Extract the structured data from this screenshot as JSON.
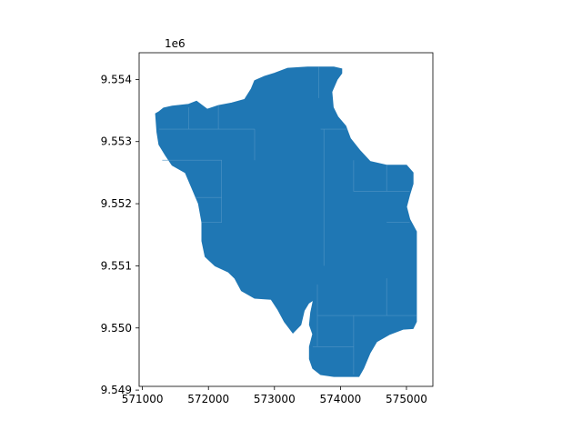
{
  "chart_data": {
    "type": "map",
    "offset_label": "1e6",
    "fill_color": "#1f77b4",
    "frame_color": "#000000",
    "xlim": [
      570950,
      575400
    ],
    "ylim": [
      9549060,
      9554430
    ],
    "x_ticks": [
      {
        "value": 571000,
        "label": "571000"
      },
      {
        "value": 572000,
        "label": "572000"
      },
      {
        "value": 573000,
        "label": "573000"
      },
      {
        "value": 574000,
        "label": "574000"
      },
      {
        "value": 575000,
        "label": "575000"
      }
    ],
    "y_ticks": [
      {
        "value": 9549000,
        "label": "9.549"
      },
      {
        "value": 9550000,
        "label": "9.550"
      },
      {
        "value": 9551000,
        "label": "9.551"
      },
      {
        "value": 9552000,
        "label": "9.552"
      },
      {
        "value": 9553000,
        "label": "9.553"
      },
      {
        "value": 9554000,
        "label": "9.554"
      }
    ],
    "region_outline": [
      [
        571200,
        9553450
      ],
      [
        571250,
        9553480
      ],
      [
        571320,
        9553540
      ],
      [
        571450,
        9553570
      ],
      [
        571700,
        9553600
      ],
      [
        571820,
        9553650
      ],
      [
        571980,
        9553520
      ],
      [
        572150,
        9553580
      ],
      [
        572350,
        9553620
      ],
      [
        572550,
        9553680
      ],
      [
        572650,
        9553850
      ],
      [
        572700,
        9553980
      ],
      [
        572850,
        9554050
      ],
      [
        573000,
        9554100
      ],
      [
        573200,
        9554180
      ],
      [
        573500,
        9554200
      ],
      [
        573700,
        9554200
      ],
      [
        573900,
        9554200
      ],
      [
        574020,
        9554170
      ],
      [
        574020,
        9554100
      ],
      [
        573950,
        9554000
      ],
      [
        573870,
        9553800
      ],
      [
        573890,
        9553550
      ],
      [
        573960,
        9553400
      ],
      [
        574080,
        9553250
      ],
      [
        574150,
        9553050
      ],
      [
        574300,
        9552850
      ],
      [
        574450,
        9552680
      ],
      [
        574700,
        9552620
      ],
      [
        575000,
        9552620
      ],
      [
        575100,
        9552500
      ],
      [
        575100,
        9552320
      ],
      [
        575050,
        9552150
      ],
      [
        575000,
        9551950
      ],
      [
        575050,
        9551750
      ],
      [
        575150,
        9551550
      ],
      [
        575150,
        9551200
      ],
      [
        575150,
        9550800
      ],
      [
        575150,
        9550400
      ],
      [
        575150,
        9550100
      ],
      [
        575100,
        9549990
      ],
      [
        574950,
        9549980
      ],
      [
        574750,
        9549900
      ],
      [
        574550,
        9549780
      ],
      [
        574450,
        9549600
      ],
      [
        574350,
        9549350
      ],
      [
        574280,
        9549220
      ],
      [
        574150,
        9549220
      ],
      [
        573900,
        9549220
      ],
      [
        573700,
        9549250
      ],
      [
        573580,
        9549350
      ],
      [
        573530,
        9549500
      ],
      [
        573530,
        9549700
      ],
      [
        573580,
        9549900
      ],
      [
        573530,
        9550050
      ],
      [
        573550,
        9550250
      ],
      [
        573590,
        9550450
      ],
      [
        573520,
        9550400
      ],
      [
        573450,
        9550280
      ],
      [
        573400,
        9550050
      ],
      [
        573280,
        9549920
      ],
      [
        573150,
        9550100
      ],
      [
        573050,
        9550300
      ],
      [
        572950,
        9550460
      ],
      [
        572700,
        9550480
      ],
      [
        572500,
        9550600
      ],
      [
        572400,
        9550800
      ],
      [
        572300,
        9550900
      ],
      [
        572100,
        9551000
      ],
      [
        571950,
        9551150
      ],
      [
        571900,
        9551400
      ],
      [
        571900,
        9551700
      ],
      [
        571850,
        9552000
      ],
      [
        571750,
        9552250
      ],
      [
        571650,
        9552500
      ],
      [
        571450,
        9552620
      ],
      [
        571350,
        9552780
      ],
      [
        571250,
        9552950
      ],
      [
        571220,
        9553150
      ],
      [
        571200,
        9553450
      ]
    ],
    "interior_boundaries": [
      [
        [
          571250,
          9553200
        ],
        [
          571900,
          9553200
        ],
        [
          572700,
          9553200
        ]
      ],
      [
        [
          571700,
          9553550
        ],
        [
          571700,
          9553200
        ]
      ],
      [
        [
          572150,
          9553580
        ],
        [
          572150,
          9553200
        ]
      ],
      [
        [
          571300,
          9552700
        ],
        [
          571800,
          9552700
        ],
        [
          572200,
          9552700
        ],
        [
          572200,
          9551700
        ],
        [
          571900,
          9551700
        ]
      ],
      [
        [
          571800,
          9552100
        ],
        [
          572200,
          9552100
        ]
      ],
      [
        [
          572700,
          9553200
        ],
        [
          572700,
          9552700
        ]
      ],
      [
        [
          573670,
          9554200
        ],
        [
          573670,
          9553700
        ]
      ],
      [
        [
          573700,
          9553200
        ],
        [
          574100,
          9553200
        ]
      ],
      [
        [
          573750,
          9553200
        ],
        [
          573750,
          9552000
        ],
        [
          573750,
          9551000
        ]
      ],
      [
        [
          574200,
          9552700
        ],
        [
          574200,
          9552200
        ],
        [
          574700,
          9552200
        ],
        [
          575050,
          9552200
        ]
      ],
      [
        [
          574700,
          9552620
        ],
        [
          574700,
          9552200
        ]
      ],
      [
        [
          574700,
          9551700
        ],
        [
          575050,
          9551700
        ]
      ],
      [
        [
          573650,
          9550700
        ],
        [
          573650,
          9550300
        ],
        [
          573650,
          9549700
        ]
      ],
      [
        [
          573650,
          9550200
        ],
        [
          574200,
          9550200
        ],
        [
          574700,
          9550200
        ],
        [
          575150,
          9550200
        ]
      ],
      [
        [
          574200,
          9550200
        ],
        [
          574200,
          9549600
        ],
        [
          574200,
          9549250
        ]
      ],
      [
        [
          573580,
          9549700
        ],
        [
          574200,
          9549700
        ]
      ],
      [
        [
          574700,
          9550800
        ],
        [
          574700,
          9550200
        ]
      ]
    ]
  }
}
